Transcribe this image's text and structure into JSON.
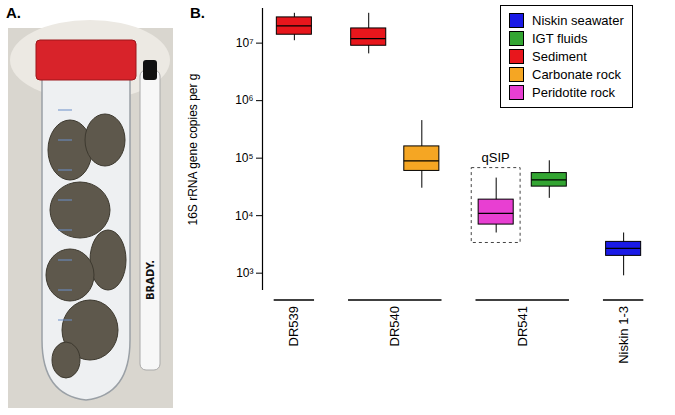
{
  "panel_a": {
    "label": "A.",
    "photo_text": [
      "BRADY."
    ]
  },
  "chart_data": {
    "type": "box",
    "panel_label": "B.",
    "ylabel": "16S rRNA gene copies per g",
    "log": "y",
    "grid": false,
    "tick_labels": "y",
    "legend": "top-right",
    "ylim": [
      500,
      40000000
    ],
    "yticks": [
      {
        "value": 1000,
        "label": "10³"
      },
      {
        "value": 10000,
        "label": "10⁴"
      },
      {
        "value": 100000,
        "label": "10⁵"
      },
      {
        "value": 1000000,
        "label": "10⁶"
      },
      {
        "value": 10000000,
        "label": "10⁷"
      }
    ],
    "series": [
      {
        "name": "Niskin seawater",
        "color": "#1a1ae6"
      },
      {
        "name": "IGT fluids",
        "color": "#33a532"
      },
      {
        "name": "Sediment",
        "color": "#e8161c"
      },
      {
        "name": "Carbonate rock",
        "color": "#f5a623"
      },
      {
        "name": "Peridotite rock",
        "color": "#e83fd2"
      }
    ],
    "boxes": [
      {
        "group": "DR539",
        "series": "Sediment",
        "min": 11000000,
        "q1": 14000000,
        "median": 20000000,
        "q3": 28000000,
        "max": 33000000
      },
      {
        "group": "DR540",
        "series": "Sediment",
        "min": 6500000,
        "q1": 9000000,
        "median": 12000000,
        "q3": 18000000,
        "max": 33000000
      },
      {
        "group": "DR540",
        "series": "Carbonate rock",
        "min": 30000,
        "q1": 60000,
        "median": 90000,
        "q3": 160000,
        "max": 450000
      },
      {
        "group": "DR541",
        "series": "Peridotite rock",
        "min": 5000,
        "q1": 7000,
        "median": 11000,
        "q3": 19000,
        "max": 45000,
        "annotation": "qSIP"
      },
      {
        "group": "DR541",
        "series": "IGT fluids",
        "min": 20000,
        "q1": 32000,
        "median": 42000,
        "q3": 55000,
        "max": 90000
      },
      {
        "group": "Niskin 1-3",
        "series": "Niskin seawater",
        "min": 900,
        "q1": 2000,
        "median": 2700,
        "q3": 3500,
        "max": 5000
      }
    ]
  }
}
